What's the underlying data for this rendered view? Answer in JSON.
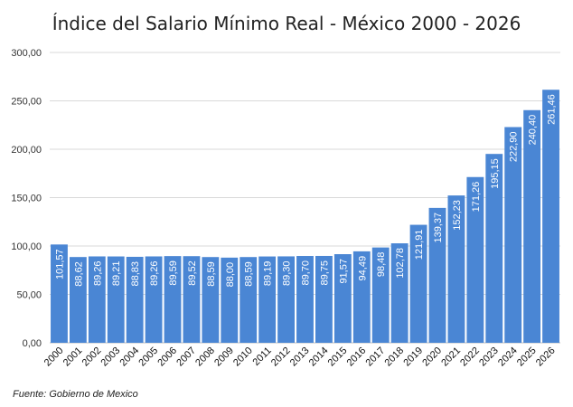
{
  "chart_data": {
    "type": "bar",
    "title": "Índice del Salario Mínimo Real - México 2000 - 2026",
    "xlabel": "",
    "ylabel": "",
    "ylim": [
      0,
      300
    ],
    "yticks": [
      "0,00",
      "50,00",
      "100,00",
      "150,00",
      "200,00",
      "250,00",
      "300,00"
    ],
    "ytick_values": [
      0,
      50,
      100,
      150,
      200,
      250,
      300
    ],
    "grid": true,
    "categories": [
      "2000",
      "2001",
      "2002",
      "2003",
      "2004",
      "2005",
      "2006",
      "2007",
      "2008",
      "2009",
      "2010",
      "2011",
      "2012",
      "2013",
      "2014",
      "2015",
      "2016",
      "2017",
      "2018",
      "2019",
      "2020",
      "2021",
      "2022",
      "2023",
      "2024",
      "2025",
      "2026"
    ],
    "values": [
      101.57,
      88.62,
      89.26,
      89.21,
      88.83,
      89.26,
      89.59,
      89.52,
      88.59,
      88.0,
      88.59,
      89.19,
      89.3,
      89.7,
      89.75,
      91.57,
      94.49,
      98.48,
      102.78,
      121.91,
      139.37,
      152.23,
      171.26,
      195.15,
      222.9,
      240.4,
      261.46
    ],
    "value_labels": [
      "101,57",
      "88,62",
      "89,26",
      "89,21",
      "88,83",
      "89,26",
      "89,59",
      "89,52",
      "88,59",
      "88,00",
      "88,59",
      "89,19",
      "89,30",
      "89,70",
      "89,75",
      "91,57",
      "94,49",
      "98,48",
      "102,78",
      "121,91",
      "139,37",
      "152,23",
      "171,26",
      "195,15",
      "222,90",
      "240,40",
      "261,46"
    ],
    "bar_color": "#4a86d4",
    "source": "Fuente: Gobierno de Mexico"
  }
}
